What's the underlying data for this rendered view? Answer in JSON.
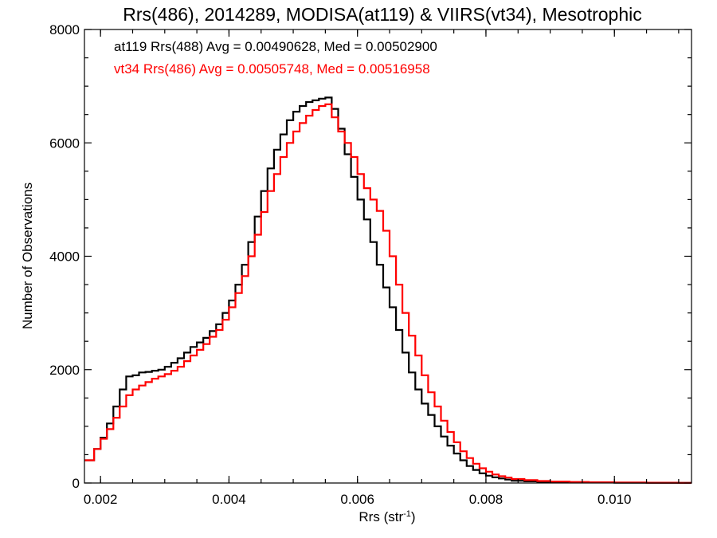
{
  "chart_data": {
    "type": "line",
    "title": "Rrs(486), 2014289, MODISA(at119) & VIIRS(vt34), Mesotrophic",
    "xlabel": "Rrs (str",
    "xlabel_sup": "-1",
    "xlabel_close": ")",
    "ylabel": "Number of Observations",
    "xlim": [
      0.00175,
      0.0112
    ],
    "ylim": [
      0,
      8000
    ],
    "xticks": [
      0.002,
      0.004,
      0.006,
      0.008,
      0.01
    ],
    "xtick_labels": [
      "0.002",
      "0.004",
      "0.006",
      "0.008",
      "0.010"
    ],
    "yticks": [
      0,
      2000,
      4000,
      6000,
      8000
    ],
    "ytick_labels": [
      "0",
      "2000",
      "4000",
      "6000",
      "8000"
    ],
    "grid": false,
    "legend_placement": "top-left",
    "series": [
      {
        "name": "at119 Rrs(488) Avg = 0.00490628, Med = 0.00502900",
        "color": "#000000",
        "x": [
          0.00175,
          0.0019,
          0.002,
          0.0021,
          0.0022,
          0.0023,
          0.0024,
          0.0025,
          0.0026,
          0.0027,
          0.0028,
          0.0029,
          0.003,
          0.0031,
          0.0032,
          0.0033,
          0.0034,
          0.0035,
          0.0036,
          0.0037,
          0.0038,
          0.0039,
          0.004,
          0.0041,
          0.0042,
          0.0043,
          0.0044,
          0.0045,
          0.0046,
          0.0047,
          0.0048,
          0.0049,
          0.005,
          0.0051,
          0.0052,
          0.0053,
          0.0054,
          0.0055,
          0.0056,
          0.0057,
          0.0058,
          0.0059,
          0.006,
          0.0061,
          0.0062,
          0.0063,
          0.0064,
          0.0065,
          0.0066,
          0.0067,
          0.0068,
          0.0069,
          0.007,
          0.0071,
          0.0072,
          0.0073,
          0.0074,
          0.0075,
          0.0076,
          0.0077,
          0.0078,
          0.0079,
          0.008,
          0.0081,
          0.0082,
          0.0083,
          0.0084,
          0.0086,
          0.0088,
          0.009,
          0.0093,
          0.0096,
          0.01,
          0.0105,
          0.011,
          0.0112
        ],
        "values": [
          400,
          600,
          800,
          1050,
          1350,
          1650,
          1880,
          1900,
          1950,
          1960,
          1980,
          2000,
          2050,
          2120,
          2200,
          2300,
          2400,
          2480,
          2560,
          2680,
          2800,
          3000,
          3220,
          3500,
          3850,
          4250,
          4700,
          5150,
          5550,
          5880,
          6150,
          6400,
          6550,
          6650,
          6720,
          6750,
          6780,
          6800,
          6600,
          6250,
          5800,
          5400,
          5000,
          4650,
          4250,
          3850,
          3450,
          3100,
          2700,
          2300,
          1950,
          1650,
          1400,
          1200,
          1000,
          820,
          660,
          520,
          400,
          300,
          230,
          170,
          130,
          100,
          80,
          60,
          40,
          30,
          20,
          15,
          10,
          8,
          5,
          3,
          2,
          2
        ]
      },
      {
        "name": "vt34 Rrs(486) Avg = 0.00505748, Med = 0.00516958",
        "color": "#ff0000",
        "x": [
          0.00175,
          0.0019,
          0.002,
          0.0021,
          0.0022,
          0.0023,
          0.0024,
          0.0025,
          0.0026,
          0.0027,
          0.0028,
          0.0029,
          0.003,
          0.0031,
          0.0032,
          0.0033,
          0.0034,
          0.0035,
          0.0036,
          0.0037,
          0.0038,
          0.0039,
          0.004,
          0.0041,
          0.0042,
          0.0043,
          0.0044,
          0.0045,
          0.0046,
          0.0047,
          0.0048,
          0.0049,
          0.005,
          0.0051,
          0.0052,
          0.0053,
          0.0054,
          0.0055,
          0.0056,
          0.0057,
          0.0058,
          0.0059,
          0.006,
          0.0061,
          0.0062,
          0.0063,
          0.0064,
          0.0065,
          0.0066,
          0.0067,
          0.0068,
          0.0069,
          0.007,
          0.0071,
          0.0072,
          0.0073,
          0.0074,
          0.0075,
          0.0076,
          0.0077,
          0.0078,
          0.0079,
          0.008,
          0.0081,
          0.0082,
          0.0083,
          0.0084,
          0.0086,
          0.0088,
          0.009,
          0.0093,
          0.0096,
          0.01,
          0.0105,
          0.011,
          0.0112
        ],
        "values": [
          400,
          600,
          780,
          950,
          1150,
          1350,
          1550,
          1650,
          1720,
          1780,
          1840,
          1880,
          1920,
          1980,
          2050,
          2150,
          2250,
          2350,
          2450,
          2580,
          2700,
          2880,
          3100,
          3350,
          3650,
          4000,
          4380,
          4780,
          5150,
          5450,
          5750,
          6000,
          6200,
          6350,
          6480,
          6580,
          6650,
          6680,
          6450,
          6200,
          6000,
          5750,
          5450,
          5200,
          5000,
          4800,
          4450,
          4000,
          3500,
          3000,
          2600,
          2250,
          1900,
          1600,
          1350,
          1100,
          900,
          720,
          560,
          440,
          340,
          260,
          200,
          150,
          120,
          95,
          70,
          50,
          35,
          25,
          18,
          12,
          8,
          5,
          3,
          3
        ]
      }
    ]
  }
}
